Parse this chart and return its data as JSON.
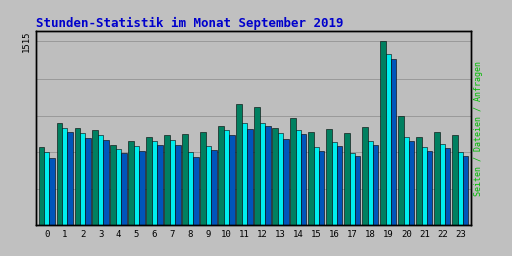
{
  "title": "Stunden-Statistik im Monat September 2019",
  "title_color": "#0000CC",
  "background_color": "#C0C0C0",
  "plot_bg_color": "#BEBEBE",
  "ylabel_right": "Seiten / Dateien / Anfragen",
  "ylabel_right_color": "#00BB00",
  "ytick_label": "1515",
  "hours": [
    0,
    1,
    2,
    3,
    4,
    5,
    6,
    7,
    8,
    9,
    10,
    11,
    12,
    13,
    14,
    15,
    16,
    17,
    18,
    19,
    20,
    21,
    22,
    23
  ],
  "seiten": [
    640,
    840,
    800,
    780,
    660,
    690,
    730,
    740,
    750,
    770,
    820,
    1000,
    970,
    800,
    880,
    770,
    790,
    760,
    810,
    1515,
    900,
    730,
    770,
    740
  ],
  "dateien": [
    600,
    800,
    760,
    740,
    625,
    655,
    695,
    700,
    600,
    650,
    780,
    840,
    845,
    755,
    785,
    645,
    685,
    595,
    695,
    1410,
    725,
    645,
    665,
    605
  ],
  "anfragen": [
    555,
    765,
    715,
    705,
    592,
    613,
    663,
    663,
    563,
    623,
    743,
    793,
    813,
    713,
    753,
    613,
    653,
    573,
    663,
    1365,
    693,
    607,
    633,
    573
  ],
  "seiten_color": "#008060",
  "dateien_color": "#00EEEE",
  "anfragen_color": "#0055BB",
  "ylim": [
    0,
    1600
  ],
  "grid_color": "#999999",
  "grid_levels": [
    300,
    600,
    900,
    1200,
    1515
  ]
}
